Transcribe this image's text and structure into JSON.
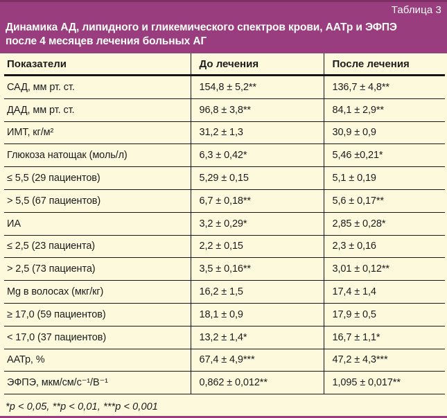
{
  "page": {
    "table_label": "Таблица 3",
    "title_line1": "Динамика АД, липидного и гликемического спектров крови, ААТр и ЭФПЭ",
    "title_line2": "после 4 месяцев лечения больных АГ",
    "footnote": "*p < 0,05, **p < 0,01, ***p < 0,001"
  },
  "colors": {
    "accent_purple": "#993D7E",
    "accent_purple_dark": "#7E3066",
    "background_cream": "#FCF9DC",
    "rule_black": "#151515"
  },
  "table": {
    "headers": [
      "Показатели",
      "До лечения",
      "После лечения"
    ],
    "rows": [
      {
        "label": "САД, мм рт. ст.",
        "before": "154,8 ± 5,2**",
        "after": "136,7 ± 4,8**"
      },
      {
        "label": "ДАД, мм рт. ст.",
        "before": "96,8 ± 3,8**",
        "after": "84,1 ± 2,9**"
      },
      {
        "label": "ИМТ, кг/м²",
        "before": "31,2 ± 1,3",
        "after": "30,9 ± 0,9"
      },
      {
        "label": "Глюкоза натощак (моль/л)",
        "before": "6,3 ± 0,42*",
        "after": "5,46 ±0,21*"
      },
      {
        "label": "≤ 5,5 (29 пациентов)",
        "before": "5,29 ± 0,15",
        "after": "5,1 ± 0,19"
      },
      {
        "label": "> 5,5 (67 пациентов)",
        "before": "6,7 ± 0,18**",
        "after": "5,6 ± 0,17**"
      },
      {
        "label": "ИА",
        "before": "3,2 ± 0,29*",
        "after": "2,85 ± 0,28*"
      },
      {
        "label": "≤ 2,5 (23 пациента)",
        "before": "2,2 ± 0,15",
        "after": "2,3 ± 0,16"
      },
      {
        "label": "> 2,5 (73 пациента)",
        "before": "3,5 ± 0,16**",
        "after": "3,01 ± 0,12**"
      },
      {
        "label": "Mg в волосах (мкг/кг)",
        "before": "16,2 ± 1,5",
        "after": "17,4 ± 1,4"
      },
      {
        "label": "≥ 17,0 (59 пациентов)",
        "before": "18,1 ± 0,9",
        "after": "17,9 ± 0,5"
      },
      {
        "label": "< 17,0 (37 пациентов)",
        "before": "13,2 ± 1,4*",
        "after": "16,7 ± 1,1*"
      },
      {
        "label": "ААТр, %",
        "before": "67,4 ± 4,9***",
        "after": "47,2 ± 4,3***"
      },
      {
        "label": "ЭФПЭ, мкм/см/с⁻¹/В⁻¹",
        "before": "0,862 ± 0,012**",
        "after": "1,095 ± 0,017**"
      }
    ]
  }
}
